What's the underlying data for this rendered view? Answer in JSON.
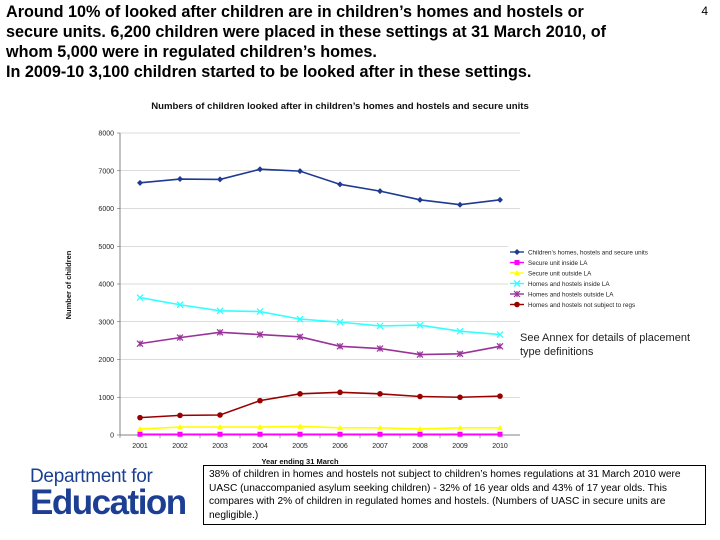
{
  "headline": {
    "line1": "Around 10% of looked after children are in children’s homes and hostels or",
    "line2": "secure units. 6,200 children were placed in these settings at 31 March 2010, of",
    "line3": "whom 5,000 were in regulated children’s homes.",
    "line4": "In 2009-10 3,100 children started to be looked after in these settings."
  },
  "page_number": "4",
  "annex_note": "See Annex for details of placement type definitions",
  "uasc_note": "38% of children in homes and hostels not subject to children’s homes regulations at 31 March 2010 were UASC (unaccompanied asylum seeking children) - 32% of 16 year olds and 43% of 17 year olds.  This compares with 2% of children in regulated homes and hostels. (Numbers of UASC in secure units are negligible.)",
  "logo": {
    "line1": "Department for",
    "line2": "Education"
  },
  "chart_data": {
    "type": "line",
    "title": "Numbers of children looked after in children’s homes and hostels and secure units",
    "xlabel": "Year ending 31 March",
    "ylabel": "Number of children",
    "ylim": [
      0,
      8000
    ],
    "yticks": [
      "0",
      "1000",
      "2000",
      "3000",
      "4000",
      "5000",
      "6000",
      "7000",
      "8000"
    ],
    "x": [
      "2001",
      "2002",
      "2003",
      "2004",
      "2005",
      "2006",
      "2007",
      "2008",
      "2009",
      "2010"
    ],
    "grid": true,
    "legend_position": "right",
    "series": [
      {
        "name": "Children’s homes, hostels and secure units",
        "color": "#1f3a93",
        "marker": "diamond",
        "values": [
          6680,
          6780,
          6770,
          7040,
          6990,
          6640,
          6460,
          6230,
          6100,
          6230
        ]
      },
      {
        "name": "Secure unit inside LA",
        "color": "#ff00ff",
        "marker": "square",
        "values": [
          20,
          20,
          20,
          20,
          20,
          20,
          20,
          20,
          20,
          20
        ]
      },
      {
        "name": "Secure unit outside LA",
        "color": "#ffff00",
        "marker": "triangle",
        "values": [
          160,
          210,
          210,
          210,
          230,
          190,
          190,
          160,
          190,
          190
        ]
      },
      {
        "name": "Homes and hostels inside LA",
        "color": "#33ffff",
        "marker": "x",
        "values": [
          3640,
          3450,
          3290,
          3270,
          3070,
          2990,
          2890,
          2910,
          2750,
          2660
        ]
      },
      {
        "name": "Homes and hostels outside LA",
        "color": "#993399",
        "marker": "star",
        "values": [
          2420,
          2580,
          2720,
          2660,
          2600,
          2350,
          2290,
          2130,
          2150,
          2350
        ]
      },
      {
        "name": "Homes and hostels not subject to regs",
        "color": "#990000",
        "marker": "circle",
        "values": [
          460,
          520,
          530,
          910,
          1090,
          1130,
          1090,
          1020,
          1000,
          1030
        ]
      }
    ]
  }
}
